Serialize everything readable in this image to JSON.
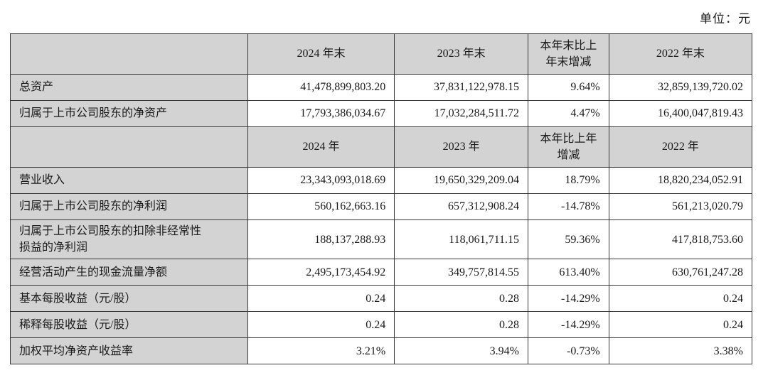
{
  "unit_label": "单位：元",
  "table": {
    "rows": [
      {
        "type": "header",
        "cells": [
          "",
          "2024 年末",
          "2023 年末",
          "本年末比上\n年末增减",
          "2022 年末"
        ]
      },
      {
        "type": "data",
        "cells": [
          "总资产",
          "41,478,899,803.20",
          "37,831,122,978.15",
          "9.64%",
          "32,859,139,720.02"
        ]
      },
      {
        "type": "data",
        "cells": [
          "归属于上市公司股东的净资产",
          "17,793,386,034.67",
          "17,032,284,511.72",
          "4.47%",
          "16,400,047,819.43"
        ]
      },
      {
        "type": "header",
        "cells": [
          "",
          "2024 年",
          "2023 年",
          "本年比上年\n增减",
          "2022 年"
        ]
      },
      {
        "type": "data",
        "cells": [
          "营业收入",
          "23,343,093,018.69",
          "19,650,329,209.04",
          "18.79%",
          "18,820,234,052.91"
        ]
      },
      {
        "type": "data",
        "cells": [
          "归属于上市公司股东的净利润",
          "560,162,663.16",
          "657,312,908.24",
          "-14.78%",
          "561,213,020.79"
        ]
      },
      {
        "type": "data",
        "cells": [
          "归属于上市公司股东的扣除非经常性\n损益的净利润",
          "188,137,288.93",
          "118,061,711.15",
          "59.36%",
          "417,818,753.60"
        ]
      },
      {
        "type": "data",
        "cells": [
          "经营活动产生的现金流量净额",
          "2,495,173,454.92",
          "349,757,814.55",
          "613.40%",
          "630,761,247.28"
        ]
      },
      {
        "type": "data",
        "cells": [
          "基本每股收益（元/股）",
          "0.24",
          "0.28",
          "-14.29%",
          "0.24"
        ]
      },
      {
        "type": "data",
        "cells": [
          "稀释每股收益（元/股）",
          "0.24",
          "0.28",
          "-14.29%",
          "0.24"
        ]
      },
      {
        "type": "data",
        "cells": [
          "加权平均净资产收益率",
          "3.21%",
          "3.94%",
          "-0.73%",
          "3.38%"
        ]
      }
    ]
  },
  "colors": {
    "header_fill": "#d3d3d3",
    "cell_fill": "#ffffff",
    "border": "#373737"
  }
}
